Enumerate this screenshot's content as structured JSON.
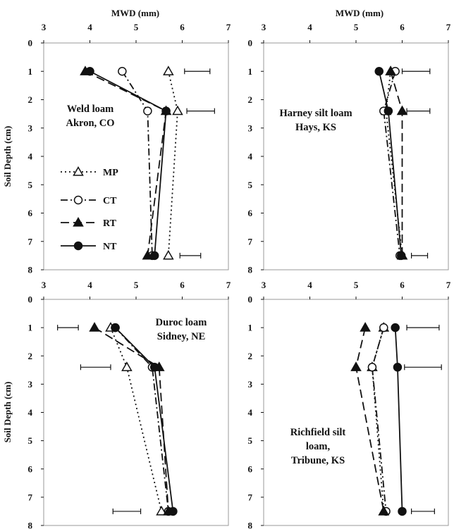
{
  "chart_data": {
    "type": "line",
    "layout": "2x2 panels, depth profiles (x = MWD, y = soil depth, y axis inverted)",
    "xlabel": "MWD (mm)",
    "ylabel": "Soil Depth (cm)",
    "xlim": [
      3,
      7
    ],
    "ylim": [
      0,
      8
    ],
    "xticks": [
      "3",
      "4",
      "5",
      "6",
      "7"
    ],
    "yticks": [
      "0",
      "1",
      "2",
      "3",
      "4",
      "5",
      "6",
      "7",
      "8"
    ],
    "grid": false,
    "legend": {
      "placement": "left-middle of top-left panel",
      "entries": [
        {
          "name": "MP",
          "marker": "triangle-open",
          "dash": "dotted"
        },
        {
          "name": "CT",
          "marker": "circle-open",
          "dash": "dash-dot"
        },
        {
          "name": "RT",
          "marker": "triangle-filled",
          "dash": "dashed"
        },
        {
          "name": "NT",
          "marker": "circle-filled",
          "dash": "solid"
        }
      ]
    },
    "panels": [
      {
        "title_lines": [
          "Weld loam",
          "Akron, CO"
        ],
        "depths": [
          1,
          2.4,
          7.5
        ],
        "series": [
          {
            "name": "MP",
            "values": [
              5.7,
              5.9,
              5.7
            ]
          },
          {
            "name": "CT",
            "values": [
              4.7,
              5.25,
              5.35
            ]
          },
          {
            "name": "RT",
            "values": [
              3.9,
              5.65,
              5.25
            ]
          },
          {
            "name": "NT",
            "values": [
              4.0,
              5.65,
              5.4
            ]
          }
        ],
        "error_bars": [
          {
            "depth": 1,
            "low": 6.05,
            "high": 6.6
          },
          {
            "depth": 2.4,
            "low": 6.1,
            "high": 6.7
          },
          {
            "depth": 7.5,
            "low": 5.95,
            "high": 6.4
          }
        ]
      },
      {
        "title_lines": [
          "Harney silt loam",
          "Hays, KS"
        ],
        "depths": [
          1,
          2.4,
          7.5
        ],
        "series": [
          {
            "name": "MP",
            "values": [
              5.75,
              5.65,
              6.0
            ]
          },
          {
            "name": "CT",
            "values": [
              5.85,
              5.6,
              5.95
            ]
          },
          {
            "name": "RT",
            "values": [
              5.75,
              6.0,
              6.0
            ]
          },
          {
            "name": "NT",
            "values": [
              5.5,
              5.7,
              5.98
            ]
          }
        ],
        "error_bars": [
          {
            "depth": 1,
            "low": 6.0,
            "high": 6.6
          },
          {
            "depth": 2.4,
            "low": 6.1,
            "high": 6.6
          },
          {
            "depth": 7.5,
            "low": 6.2,
            "high": 6.55
          }
        ]
      },
      {
        "title_lines": [
          "Duroc loam",
          "Sidney, NE"
        ],
        "depths": [
          1,
          2.4,
          7.5
        ],
        "series": [
          {
            "name": "MP",
            "values": [
              4.45,
              4.8,
              5.55
            ]
          },
          {
            "name": "CT",
            "values": [
              4.55,
              5.35,
              5.7
            ]
          },
          {
            "name": "RT",
            "values": [
              4.1,
              5.5,
              5.7
            ]
          },
          {
            "name": "NT",
            "values": [
              4.55,
              5.4,
              5.8
            ]
          }
        ],
        "error_bars": [
          {
            "depth": 1,
            "low": 3.3,
            "high": 3.75
          },
          {
            "depth": 2.4,
            "low": 3.8,
            "high": 4.45
          },
          {
            "depth": 7.5,
            "low": 4.5,
            "high": 5.1
          }
        ]
      },
      {
        "title_lines": [
          "Richfield silt",
          "loam,",
          "Tribune, KS"
        ],
        "depths": [
          1,
          2.4,
          7.5
        ],
        "series": [
          {
            "name": "MP",
            "values": [
              5.6,
              5.35,
              5.6
            ]
          },
          {
            "name": "CT",
            "values": [
              5.6,
              5.35,
              5.65
            ]
          },
          {
            "name": "RT",
            "values": [
              5.2,
              5.0,
              5.6
            ]
          },
          {
            "name": "NT",
            "values": [
              5.85,
              5.9,
              6.0
            ]
          }
        ],
        "error_bars": [
          {
            "depth": 1,
            "low": 6.1,
            "high": 6.8
          },
          {
            "depth": 2.4,
            "low": 6.05,
            "high": 6.85
          },
          {
            "depth": 7.5,
            "low": 6.2,
            "high": 6.7
          }
        ]
      }
    ]
  }
}
